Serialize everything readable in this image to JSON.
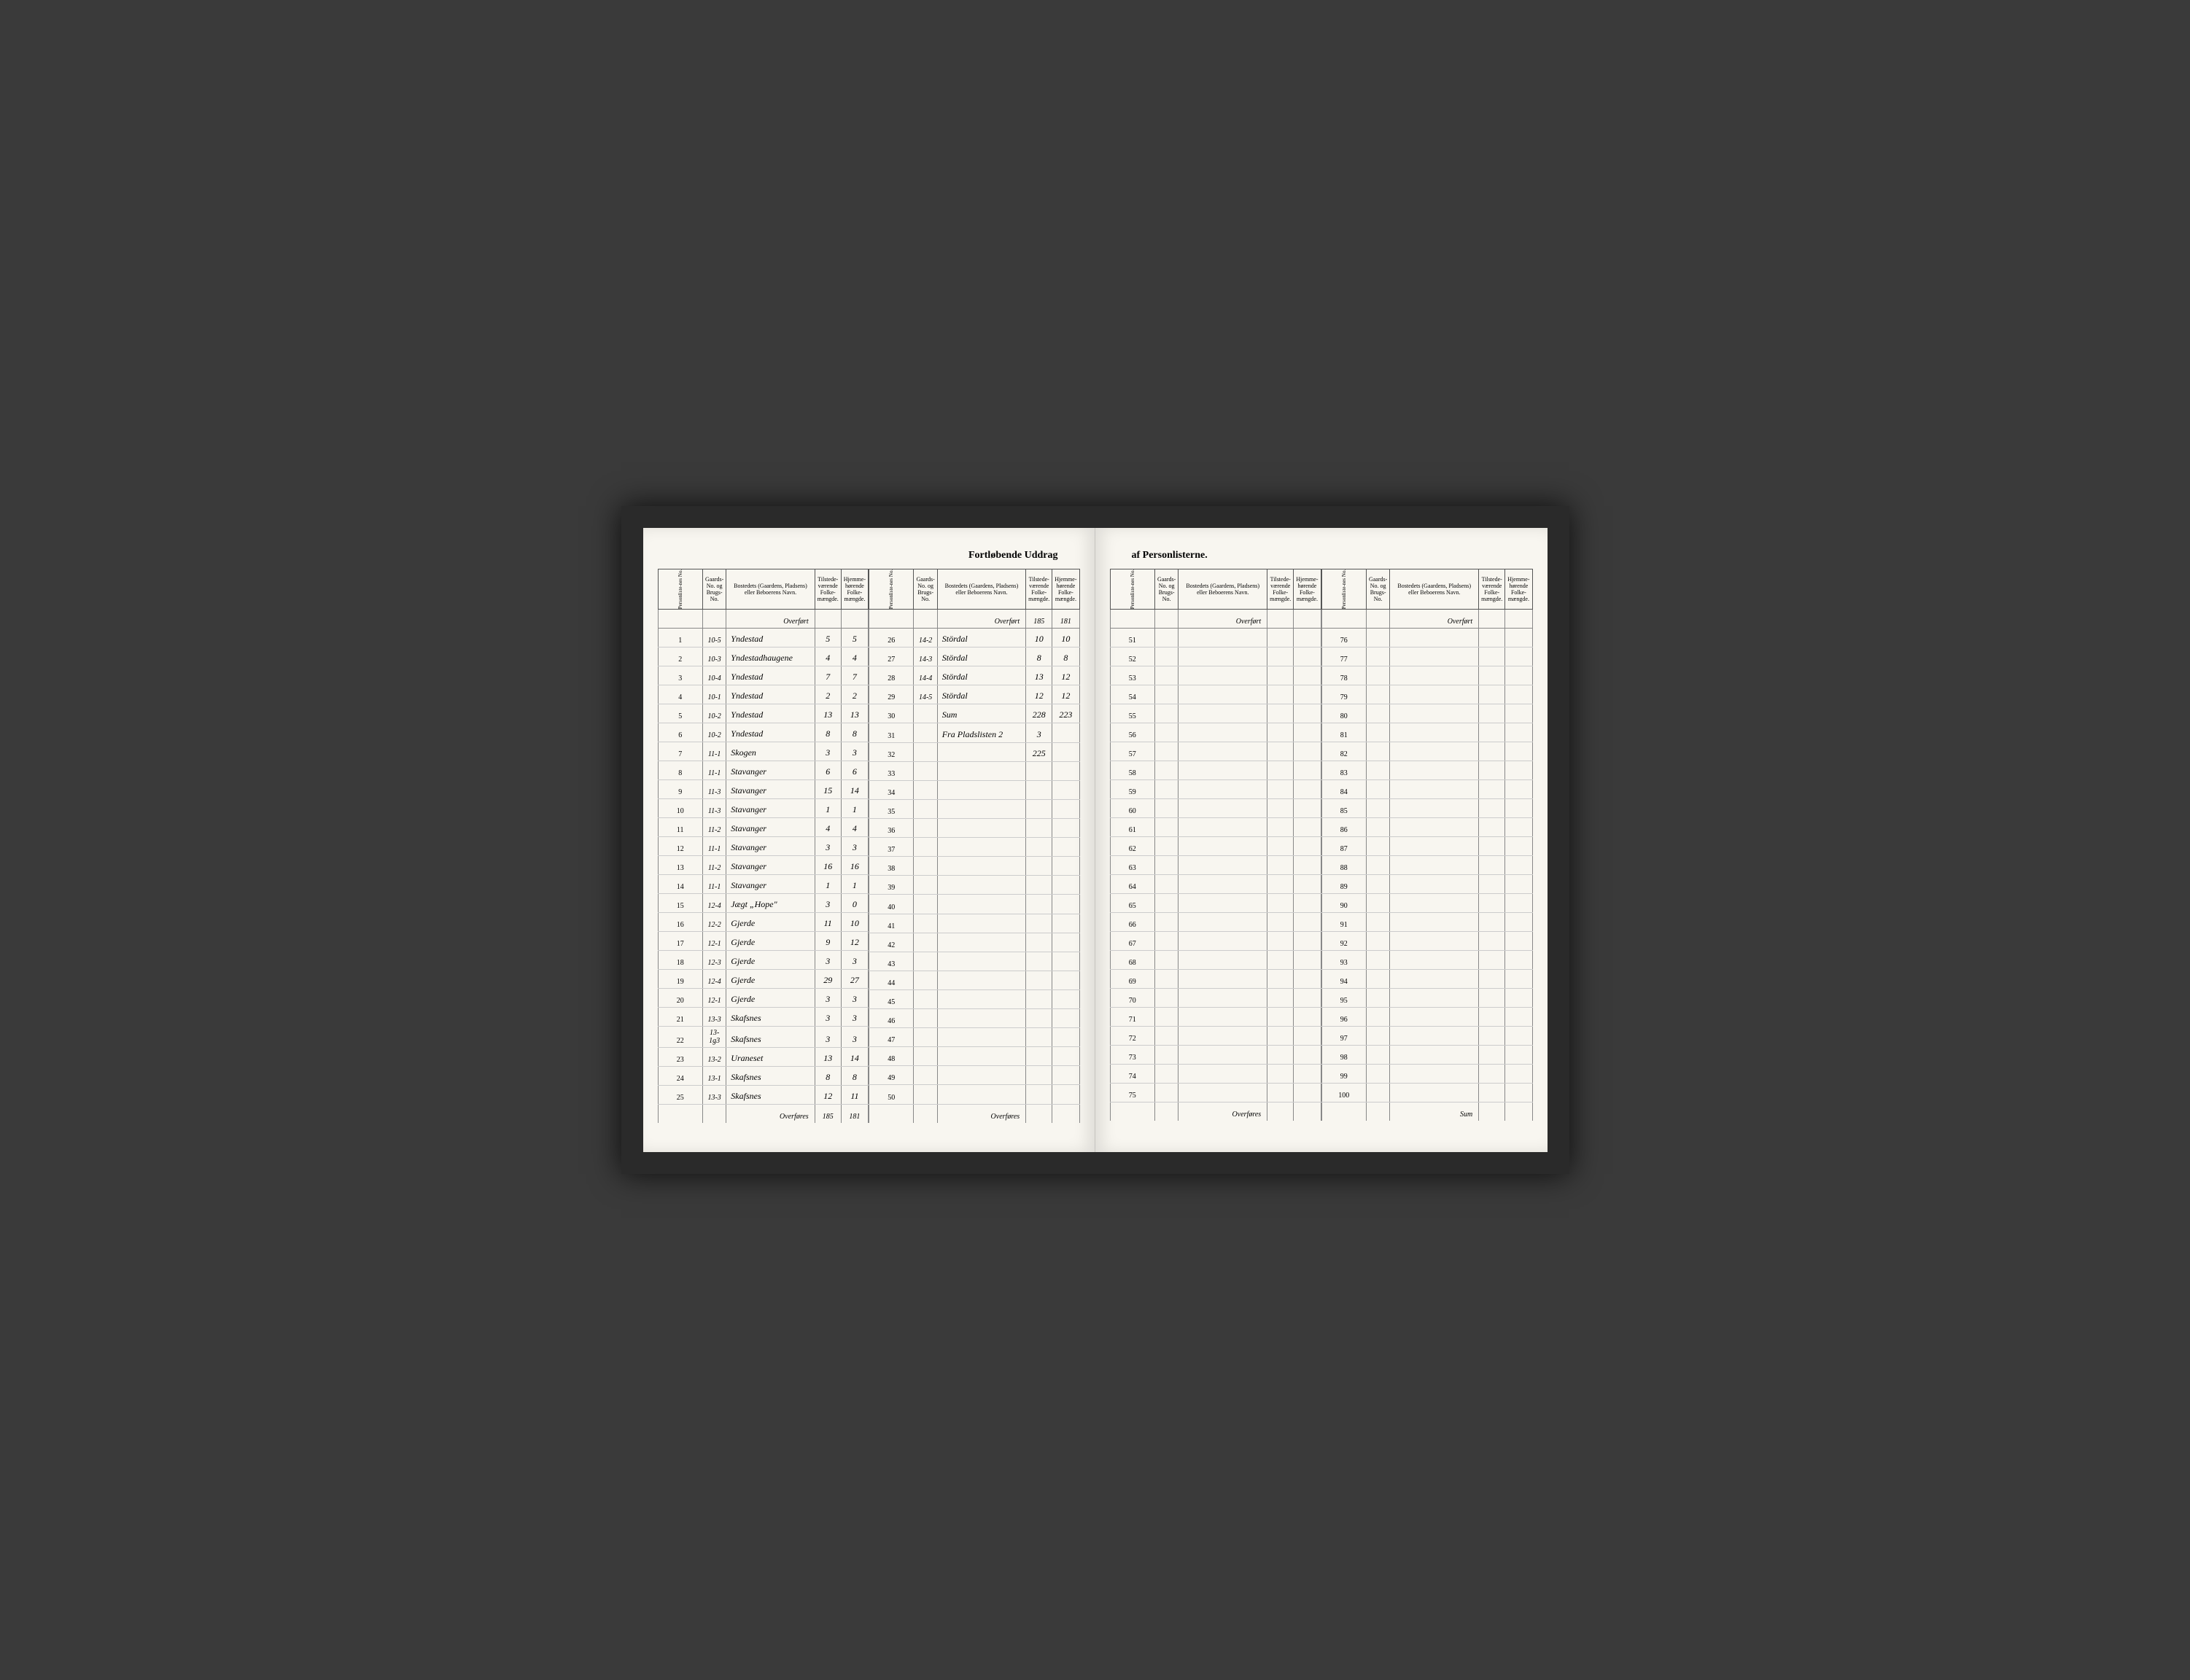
{
  "document": {
    "title_left": "Fortløbende Uddrag",
    "title_right": "af Personlisterne.",
    "headers": {
      "personliste": "Personliste-nes No.",
      "gaards": "Gaards-No. og Brugs-No.",
      "bosted": "Bostedets (Gaardens, Pladsens) eller Beboerens Navn.",
      "tilstede": "Tilstede-værende Folke-mængde.",
      "hjemme": "Hjemme-hørende Folke-mængde."
    },
    "overfort_label": "Overført",
    "overfores_label": "Overføres",
    "sum_label": "Sum",
    "colors": {
      "page_bg": "#f8f6f0",
      "frame_bg": "#2a2a2a",
      "border": "#555555",
      "row_line": "#cccccc",
      "ink": "#2a2a2a"
    },
    "font_sizes": {
      "title": 14,
      "header": 8,
      "body": 10,
      "script": 12
    }
  },
  "left_page": {
    "col1": {
      "overfort": {
        "tilstede": "",
        "hjemme": ""
      },
      "rows": [
        {
          "n": 1,
          "g": "10-5",
          "name": "Yndestad",
          "t": "5",
          "h": "5"
        },
        {
          "n": 2,
          "g": "10-3",
          "name": "Yndestadhaugene",
          "t": "4",
          "h": "4"
        },
        {
          "n": 3,
          "g": "10-4",
          "name": "Yndestad",
          "t": "7",
          "h": "7"
        },
        {
          "n": 4,
          "g": "10-1",
          "name": "Yndestad",
          "t": "2",
          "h": "2"
        },
        {
          "n": 5,
          "g": "10-2",
          "name": "Yndestad",
          "t": "13",
          "h": "13"
        },
        {
          "n": 6,
          "g": "10-2",
          "name": "Yndestad",
          "t": "8",
          "h": "8"
        },
        {
          "n": 7,
          "g": "11-1",
          "name": "Skogen",
          "t": "3",
          "h": "3"
        },
        {
          "n": 8,
          "g": "11-1",
          "name": "Stavanger",
          "t": "6",
          "h": "6"
        },
        {
          "n": 9,
          "g": "11-3",
          "name": "Stavanger",
          "t": "15",
          "h": "14"
        },
        {
          "n": 10,
          "g": "11-3",
          "name": "Stavanger",
          "t": "1",
          "h": "1"
        },
        {
          "n": 11,
          "g": "11-2",
          "name": "Stavanger",
          "t": "4",
          "h": "4"
        },
        {
          "n": 12,
          "g": "11-1",
          "name": "Stavanger",
          "t": "3",
          "h": "3"
        },
        {
          "n": 13,
          "g": "11-2",
          "name": "Stavanger",
          "t": "16",
          "h": "16"
        },
        {
          "n": 14,
          "g": "11-1",
          "name": "Stavanger",
          "t": "1",
          "h": "1"
        },
        {
          "n": 15,
          "g": "12-4",
          "name": "Jægt „Hope\"",
          "t": "3",
          "h": "0"
        },
        {
          "n": 16,
          "g": "12-2",
          "name": "Gjerde",
          "t": "11",
          "h": "10"
        },
        {
          "n": 17,
          "g": "12-1",
          "name": "Gjerde",
          "t": "9",
          "h": "12"
        },
        {
          "n": 18,
          "g": "12-3",
          "name": "Gjerde",
          "t": "3",
          "h": "3"
        },
        {
          "n": 19,
          "g": "12-4",
          "name": "Gjerde",
          "t": "29",
          "h": "27"
        },
        {
          "n": 20,
          "g": "12-1",
          "name": "Gjerde",
          "t": "3",
          "h": "3"
        },
        {
          "n": 21,
          "g": "13-3",
          "name": "Skafsnes",
          "t": "3",
          "h": "3"
        },
        {
          "n": 22,
          "g": "13-1g3",
          "name": "Skafsnes",
          "t": "3",
          "h": "3"
        },
        {
          "n": 23,
          "g": "13-2",
          "name": "Uraneset",
          "t": "13",
          "h": "14"
        },
        {
          "n": 24,
          "g": "13-1",
          "name": "Skafsnes",
          "t": "8",
          "h": "8"
        },
        {
          "n": 25,
          "g": "13-3",
          "name": "Skafsnes",
          "t": "12",
          "h": "11"
        }
      ],
      "overfores": {
        "tilstede": "185",
        "hjemme": "181"
      }
    },
    "col2": {
      "overfort": {
        "tilstede": "185",
        "hjemme": "181"
      },
      "rows": [
        {
          "n": 26,
          "g": "14-2",
          "name": "Stördal",
          "t": "10",
          "h": "10"
        },
        {
          "n": 27,
          "g": "14-3",
          "name": "Stördal",
          "t": "8",
          "h": "8"
        },
        {
          "n": 28,
          "g": "14-4",
          "name": "Stördal",
          "t": "13",
          "h": "12"
        },
        {
          "n": 29,
          "g": "14-5",
          "name": "Stördal",
          "t": "12",
          "h": "12"
        },
        {
          "n": 30,
          "g": "",
          "name": "Sum",
          "t": "228",
          "h": "223"
        },
        {
          "n": 31,
          "g": "",
          "name": "Fra Pladslisten 2",
          "t": "3",
          "h": ""
        },
        {
          "n": 32,
          "g": "",
          "name": "",
          "t": "225",
          "h": ""
        },
        {
          "n": 33,
          "g": "",
          "name": "",
          "t": "",
          "h": ""
        },
        {
          "n": 34,
          "g": "",
          "name": "",
          "t": "",
          "h": ""
        },
        {
          "n": 35,
          "g": "",
          "name": "",
          "t": "",
          "h": ""
        },
        {
          "n": 36,
          "g": "",
          "name": "",
          "t": "",
          "h": ""
        },
        {
          "n": 37,
          "g": "",
          "name": "",
          "t": "",
          "h": ""
        },
        {
          "n": 38,
          "g": "",
          "name": "",
          "t": "",
          "h": ""
        },
        {
          "n": 39,
          "g": "",
          "name": "",
          "t": "",
          "h": ""
        },
        {
          "n": 40,
          "g": "",
          "name": "",
          "t": "",
          "h": ""
        },
        {
          "n": 41,
          "g": "",
          "name": "",
          "t": "",
          "h": ""
        },
        {
          "n": 42,
          "g": "",
          "name": "",
          "t": "",
          "h": ""
        },
        {
          "n": 43,
          "g": "",
          "name": "",
          "t": "",
          "h": ""
        },
        {
          "n": 44,
          "g": "",
          "name": "",
          "t": "",
          "h": ""
        },
        {
          "n": 45,
          "g": "",
          "name": "",
          "t": "",
          "h": ""
        },
        {
          "n": 46,
          "g": "",
          "name": "",
          "t": "",
          "h": ""
        },
        {
          "n": 47,
          "g": "",
          "name": "",
          "t": "",
          "h": ""
        },
        {
          "n": 48,
          "g": "",
          "name": "",
          "t": "",
          "h": ""
        },
        {
          "n": 49,
          "g": "",
          "name": "",
          "t": "",
          "h": ""
        },
        {
          "n": 50,
          "g": "",
          "name": "",
          "t": "",
          "h": ""
        }
      ],
      "overfores": {
        "tilstede": "",
        "hjemme": ""
      }
    }
  },
  "right_page": {
    "col1": {
      "overfort": {
        "tilstede": "",
        "hjemme": ""
      },
      "rows": [
        {
          "n": 51
        },
        {
          "n": 52
        },
        {
          "n": 53
        },
        {
          "n": 54
        },
        {
          "n": 55
        },
        {
          "n": 56
        },
        {
          "n": 57
        },
        {
          "n": 58
        },
        {
          "n": 59
        },
        {
          "n": 60
        },
        {
          "n": 61
        },
        {
          "n": 62
        },
        {
          "n": 63
        },
        {
          "n": 64
        },
        {
          "n": 65
        },
        {
          "n": 66
        },
        {
          "n": 67
        },
        {
          "n": 68
        },
        {
          "n": 69
        },
        {
          "n": 70
        },
        {
          "n": 71
        },
        {
          "n": 72
        },
        {
          "n": 73
        },
        {
          "n": 74
        },
        {
          "n": 75
        }
      ],
      "overfores": {
        "tilstede": "",
        "hjemme": ""
      }
    },
    "col2": {
      "overfort": {
        "tilstede": "",
        "hjemme": ""
      },
      "rows": [
        {
          "n": 76
        },
        {
          "n": 77
        },
        {
          "n": 78
        },
        {
          "n": 79
        },
        {
          "n": 80
        },
        {
          "n": 81
        },
        {
          "n": 82
        },
        {
          "n": 83
        },
        {
          "n": 84
        },
        {
          "n": 85
        },
        {
          "n": 86
        },
        {
          "n": 87
        },
        {
          "n": 88
        },
        {
          "n": 89
        },
        {
          "n": 90
        },
        {
          "n": 91
        },
        {
          "n": 92
        },
        {
          "n": 93
        },
        {
          "n": 94
        },
        {
          "n": 95
        },
        {
          "n": 96
        },
        {
          "n": 97
        },
        {
          "n": 98
        },
        {
          "n": 99
        },
        {
          "n": 100
        }
      ],
      "sum": {
        "tilstede": "",
        "hjemme": ""
      }
    }
  }
}
